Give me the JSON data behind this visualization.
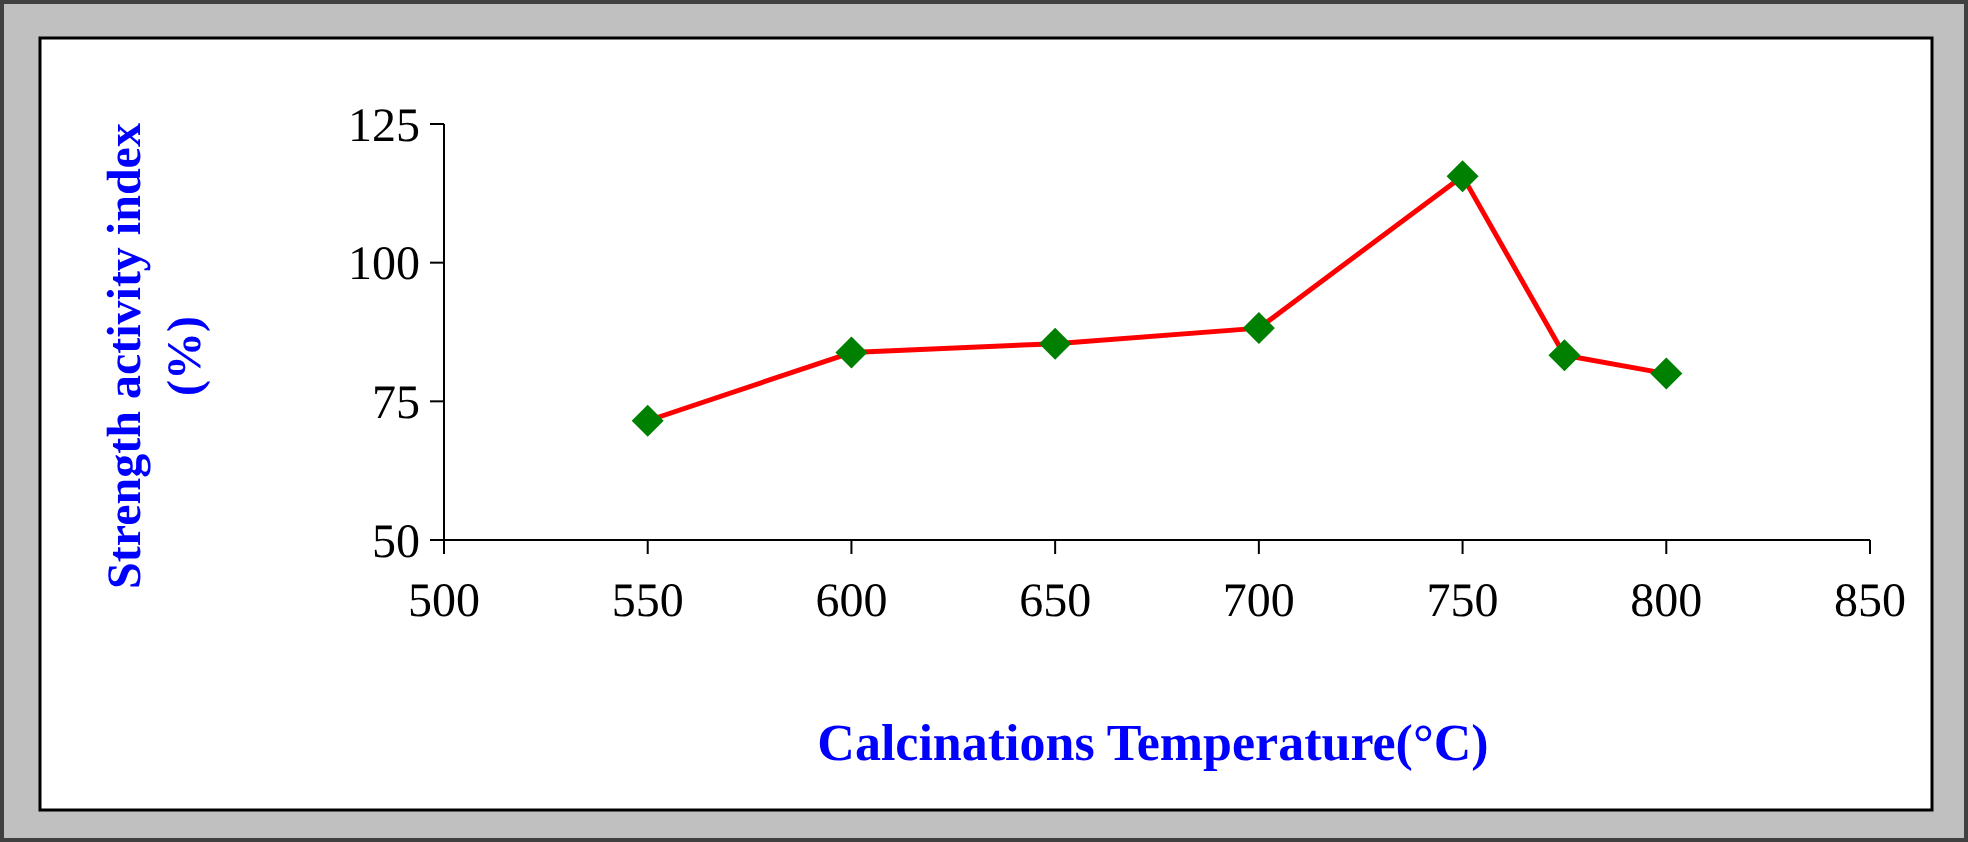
{
  "chart_data": {
    "type": "line",
    "xlabel": "Calcinations Temperature(°C)",
    "ylabel": "Strength activity index\n(%)",
    "x": [
      550,
      600,
      650,
      700,
      750,
      775,
      800
    ],
    "series": [
      {
        "color": "#ff0000",
        "colors": [
          "#008000",
          "#008000",
          "#008000",
          "#008000",
          "#008000",
          "#008000",
          "#008000"
        ],
        "values": [
          71.5,
          83.8,
          85.4,
          88.2,
          115.6,
          83.3,
          80
        ]
      }
    ],
    "marker": "diamond",
    "xlim": [
      500,
      850
    ],
    "xticks": [
      500,
      550,
      600,
      650,
      700,
      750,
      800,
      850
    ],
    "ylim": [
      50,
      125
    ],
    "yticks": [
      50,
      75,
      100,
      125
    ],
    "grid": false
  }
}
